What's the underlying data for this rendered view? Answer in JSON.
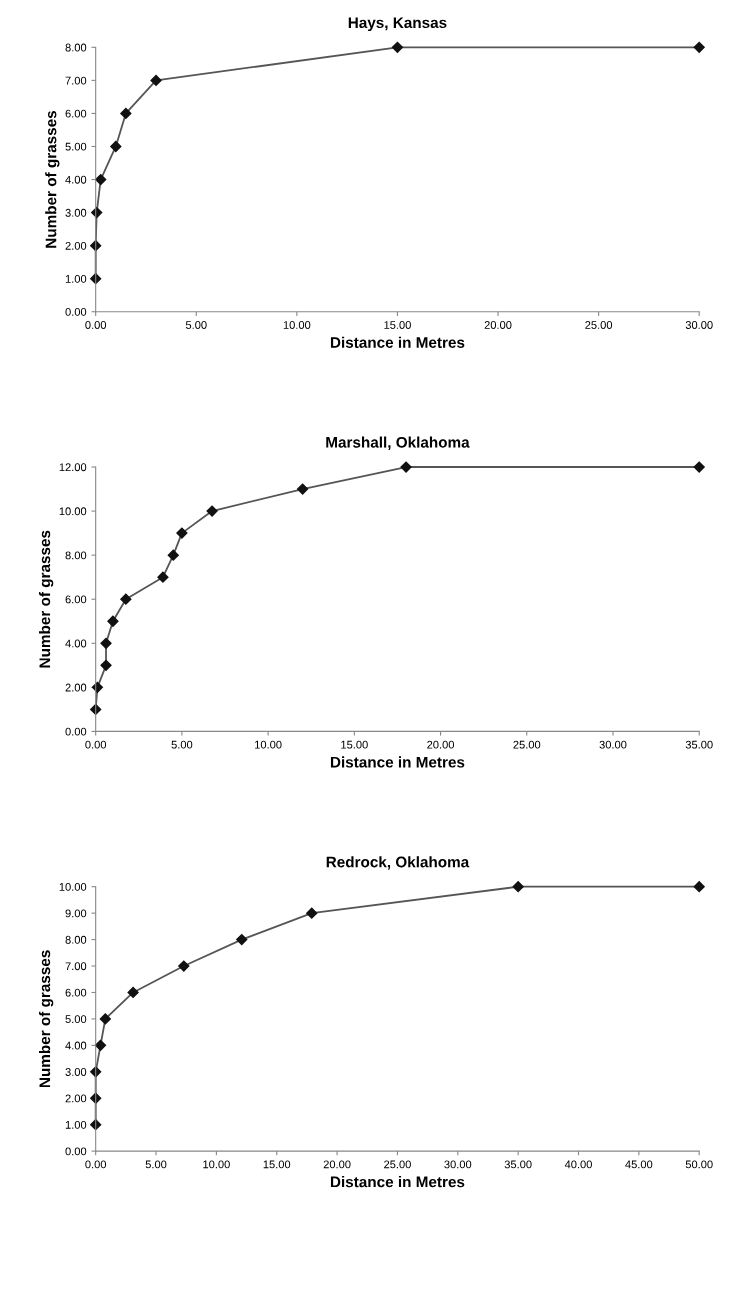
{
  "chart_data": [
    {
      "type": "line",
      "title": "Hays, Kansas",
      "xlabel": "Distance in Metres",
      "ylabel": "Number of grasses",
      "marker": "diamond",
      "line_style": "solid",
      "grid": false,
      "series": [
        {
          "color": "#555555",
          "x": [
            0,
            0,
            0.05,
            0.25,
            1.0,
            1.5,
            3.0,
            15,
            30
          ],
          "values": [
            1,
            2,
            3,
            4,
            5,
            6,
            7,
            8,
            8
          ]
        }
      ],
      "xlim": [
        0,
        30
      ],
      "ylim": [
        0,
        8
      ],
      "xticks": [
        {
          "value": 0,
          "label": "0.00"
        },
        {
          "value": 5,
          "label": "5.00"
        },
        {
          "value": 10,
          "label": "10.00"
        },
        {
          "value": 15,
          "label": "15.00"
        },
        {
          "value": 20,
          "label": "20.00"
        },
        {
          "value": 25,
          "label": "25.00"
        },
        {
          "value": 30,
          "label": "30.00"
        }
      ],
      "yticks": [
        {
          "value": 0,
          "label": "0.00"
        },
        {
          "value": 1,
          "label": "1.00"
        },
        {
          "value": 2,
          "label": "2.00"
        },
        {
          "value": 3,
          "label": "3.00"
        },
        {
          "value": 4,
          "label": "4.00"
        },
        {
          "value": 5,
          "label": "5.00"
        },
        {
          "value": 6,
          "label": "6.00"
        },
        {
          "value": 7,
          "label": "7.00"
        },
        {
          "value": 8,
          "label": "8.00"
        }
      ]
    },
    {
      "type": "line",
      "title": "Marshall, Oklahoma",
      "xlabel": "Distance in Metres",
      "ylabel": "Number of grasses",
      "marker": "diamond",
      "line_style": "solid",
      "grid": false,
      "series": [
        {
          "color": "#555555",
          "x": [
            0,
            0.1,
            0.6,
            0.6,
            1.0,
            1.75,
            3.9,
            4.5,
            5.0,
            6.75,
            12,
            18,
            35
          ],
          "values": [
            1,
            2,
            3,
            4,
            5,
            6,
            7,
            8,
            9,
            10,
            11,
            12,
            12
          ]
        }
      ],
      "xlim": [
        0,
        35
      ],
      "ylim": [
        0,
        12
      ],
      "xticks": [
        {
          "value": 0,
          "label": "0.00"
        },
        {
          "value": 5,
          "label": "5.00"
        },
        {
          "value": 10,
          "label": "10.00"
        },
        {
          "value": 15,
          "label": "15.00"
        },
        {
          "value": 20,
          "label": "20.00"
        },
        {
          "value": 25,
          "label": "25.00"
        },
        {
          "value": 30,
          "label": "30.00"
        },
        {
          "value": 35,
          "label": "35.00"
        }
      ],
      "yticks": [
        {
          "value": 0,
          "label": "0.00"
        },
        {
          "value": 2,
          "label": "2.00"
        },
        {
          "value": 4,
          "label": "4.00"
        },
        {
          "value": 6,
          "label": "6.00"
        },
        {
          "value": 8,
          "label": "8.00"
        },
        {
          "value": 10,
          "label": "10.00"
        },
        {
          "value": 12,
          "label": "12.00"
        }
      ]
    },
    {
      "type": "line",
      "title": "Redrock, Oklahoma",
      "xlabel": "Distance in Metres",
      "ylabel": "Number of grasses",
      "marker": "diamond",
      "line_style": "solid",
      "grid": false,
      "series": [
        {
          "color": "#555555",
          "x": [
            0,
            0,
            0,
            0.4,
            0.8,
            3.1,
            7.3,
            12.1,
            17.9,
            35,
            50
          ],
          "values": [
            1,
            2,
            3,
            4,
            5,
            6,
            7,
            8,
            9,
            10,
            10
          ]
        }
      ],
      "xlim": [
        0,
        50
      ],
      "ylim": [
        0,
        10
      ],
      "xticks": [
        {
          "value": 0,
          "label": "0.00"
        },
        {
          "value": 5,
          "label": "5.00"
        },
        {
          "value": 10,
          "label": "10.00"
        },
        {
          "value": 15,
          "label": "15.00"
        },
        {
          "value": 20,
          "label": "20.00"
        },
        {
          "value": 25,
          "label": "25.00"
        },
        {
          "value": 30,
          "label": "30.00"
        },
        {
          "value": 35,
          "label": "35.00"
        },
        {
          "value": 40,
          "label": "40.00"
        },
        {
          "value": 45,
          "label": "45.00"
        },
        {
          "value": 50,
          "label": "50.00"
        }
      ],
      "yticks": [
        {
          "value": 0,
          "label": "0.00"
        },
        {
          "value": 1,
          "label": "1.00"
        },
        {
          "value": 2,
          "label": "2.00"
        },
        {
          "value": 3,
          "label": "3.00"
        },
        {
          "value": 4,
          "label": "4.00"
        },
        {
          "value": 5,
          "label": "5.00"
        },
        {
          "value": 6,
          "label": "6.00"
        },
        {
          "value": 7,
          "label": "7.00"
        },
        {
          "value": 8,
          "label": "8.00"
        },
        {
          "value": 9,
          "label": "9.00"
        },
        {
          "value": 10,
          "label": "10.00"
        }
      ]
    }
  ]
}
